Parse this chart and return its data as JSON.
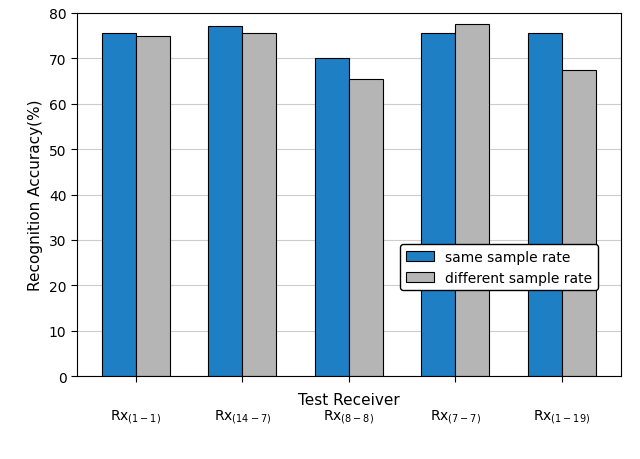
{
  "categories": [
    "(1-1)",
    "(14-7)",
    "(8-8)",
    "(7-7)",
    "(1-19)"
  ],
  "same_sample_rate": [
    75.5,
    77.0,
    70.0,
    75.5,
    75.5
  ],
  "diff_sample_rate": [
    75.0,
    75.5,
    65.5,
    77.5,
    67.5
  ],
  "blue_color": "#1f7fc4",
  "gray_color": "#b5b5b5",
  "ylabel": "Recognition Accuracy(%)",
  "xlabel": "Test Receiver",
  "ylim": [
    0,
    80
  ],
  "yticks": [
    0,
    10,
    20,
    30,
    40,
    50,
    60,
    70,
    80
  ],
  "legend_labels": [
    "same sample rate",
    "different sample rate"
  ],
  "bar_width": 0.32,
  "axis_fontsize": 11,
  "tick_fontsize": 10,
  "legend_fontsize": 10
}
